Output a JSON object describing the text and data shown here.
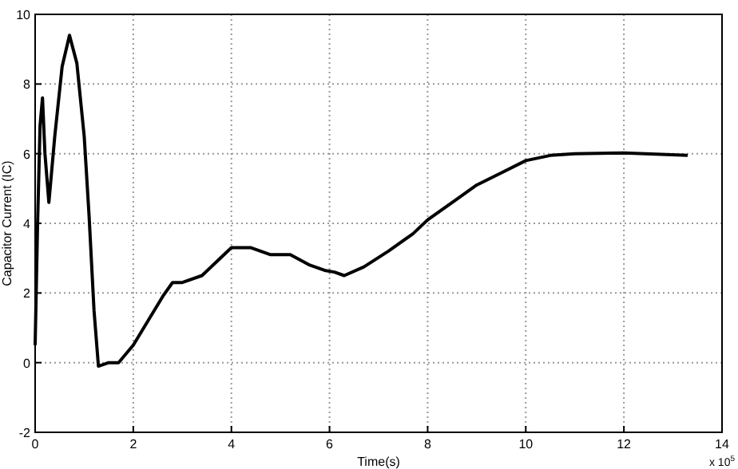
{
  "chart_data": {
    "type": "line",
    "xlabel": "Time(s)",
    "ylabel": "Capacitor Current (IC)",
    "annotations": [
      "x 10$^{5}$"
    ],
    "x": [
      0,
      0.05,
      0.1,
      0.15,
      0.2,
      0.28,
      0.4,
      0.55,
      0.7,
      0.85,
      1.0,
      1.1,
      1.2,
      1.29,
      1.5,
      1.7,
      2.0,
      2.3,
      2.6,
      2.8,
      3.0,
      3.4,
      3.7,
      4.0,
      4.4,
      4.8,
      5.2,
      5.6,
      5.9,
      6.1,
      6.3,
      6.7,
      7.2,
      7.7,
      8.0,
      8.5,
      9.0,
      9.5,
      10.0,
      10.5,
      11.0,
      12.0,
      13.3
    ],
    "series": [
      {
        "color": "#000000",
        "values": [
          0.5,
          4,
          6.8,
          7.6,
          6,
          4.6,
          6.5,
          8.5,
          9.4,
          8.6,
          6.5,
          4.2,
          1.5,
          -0.1,
          0,
          0,
          0.5,
          1.2,
          1.9,
          2.3,
          2.3,
          2.5,
          2.9,
          3.3,
          3.3,
          3.1,
          3.1,
          2.8,
          2.65,
          2.6,
          2.5,
          2.75,
          3.2,
          3.7,
          4.1,
          4.6,
          5.1,
          5.45,
          5.8,
          5.95,
          6.0,
          6.02,
          5.95
        ]
      }
    ],
    "xlim": [
      0,
      14
    ],
    "xticks": [
      0,
      2,
      4,
      6,
      8,
      10,
      12,
      14
    ],
    "ylim": [
      -2,
      10
    ],
    "yticks": [
      -2,
      0,
      2,
      4,
      6,
      8,
      10
    ],
    "grid": true,
    "line_style": "solid",
    "marker": "none"
  }
}
